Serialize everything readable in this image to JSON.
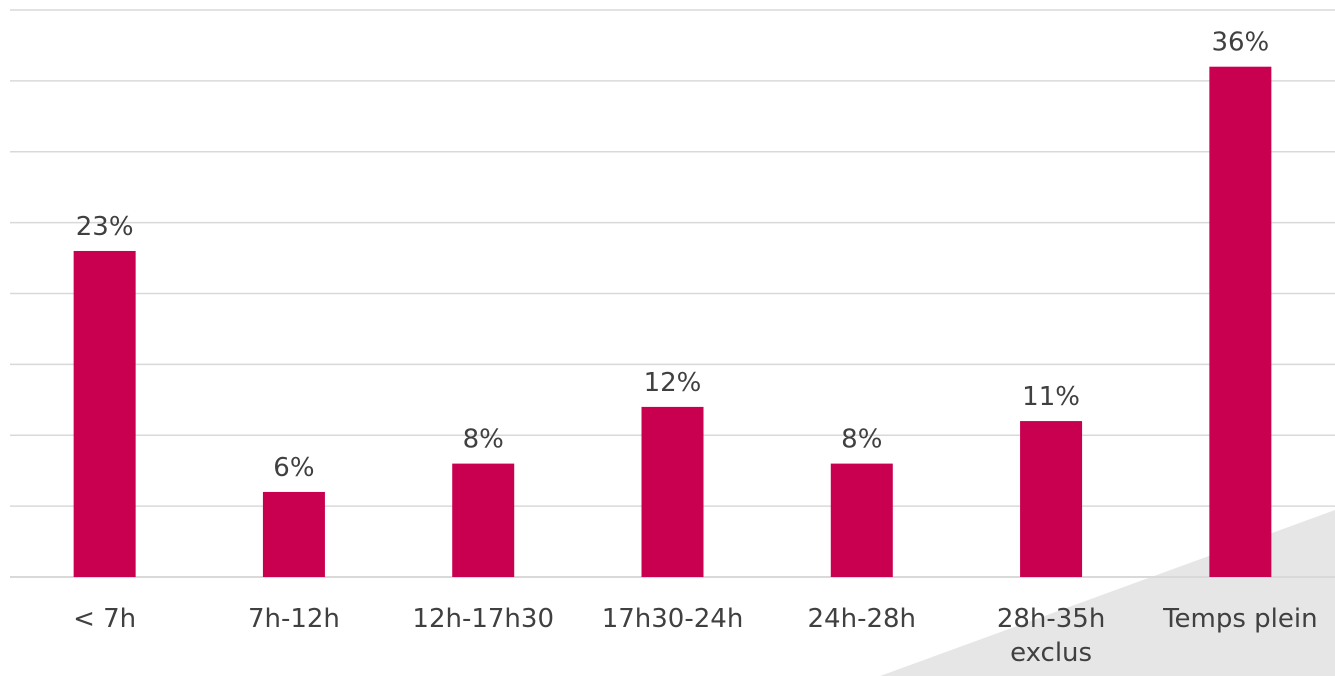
{
  "chart_data": {
    "type": "bar",
    "categories": [
      [
        "< 7h"
      ],
      [
        "7h-12h"
      ],
      [
        "12h-17h30"
      ],
      [
        "17h30-24h"
      ],
      [
        "24h-28h"
      ],
      [
        "28h-35h",
        "exclus"
      ],
      [
        "Temps plein"
      ]
    ],
    "values": [
      23,
      6,
      8,
      12,
      8,
      11,
      36
    ],
    "data_labels": [
      "23%",
      "6%",
      "8%",
      "12%",
      "8%",
      "11%",
      "36%"
    ],
    "bar_color": "#c8004f",
    "grid": true,
    "ylim": [
      0,
      40
    ],
    "legend": "none"
  }
}
